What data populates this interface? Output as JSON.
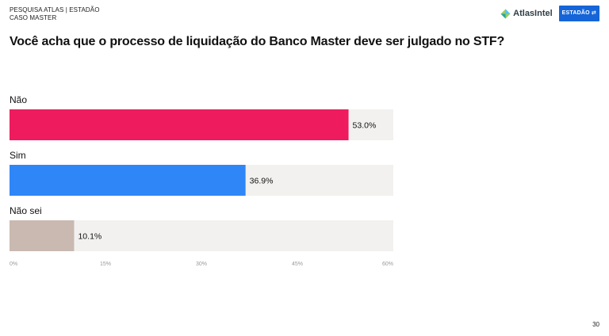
{
  "header": {
    "line1": "PESQUISA ATLAS | ESTADÃO",
    "line2": "CASO MASTER",
    "atlas_logo_text": "AtlasIntel",
    "estadao_logo_text": "ESTADÃO"
  },
  "page_number": "30",
  "chart_data": {
    "type": "bar",
    "orientation": "horizontal",
    "title": "Você acha que o processo de liquidação do Banco Master deve ser julgado no STF?",
    "categories": [
      "Não",
      "Sim",
      "Não sei"
    ],
    "values": [
      53.0,
      36.9,
      10.1
    ],
    "value_labels": [
      "53.0%",
      "36.9%",
      "10.1%"
    ],
    "xlim": [
      0,
      60
    ],
    "xticks": [
      0,
      15,
      30,
      45,
      60
    ],
    "xtick_labels": [
      "0%",
      "15%",
      "30%",
      "45%",
      "60%"
    ],
    "colors": [
      "#ee1c5f",
      "#2f87f7",
      "#c9b9b0"
    ],
    "track_color": "#f2f1ef",
    "grid": false,
    "legend": "none"
  }
}
